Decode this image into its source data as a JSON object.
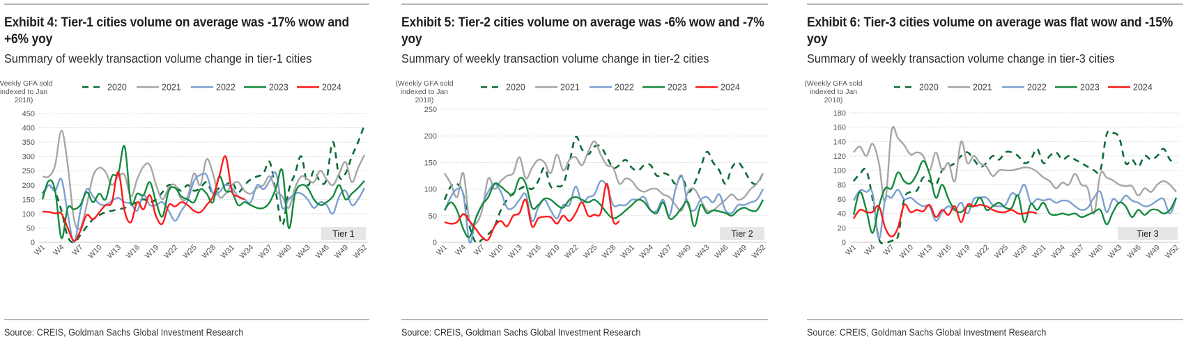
{
  "exhibits": [
    {
      "title": "Exhibit 4: Tier-1 cities volume on average was -17% wow and +6% yoy",
      "subtitle": "Summary of weekly transaction volume change in tier-1 cities",
      "source": "Source: CREIS, Goldman Sachs Global Investment Research"
    },
    {
      "title": "Exhibit 5: Tier-2 cities volume on average was -6% wow and -7% yoy",
      "subtitle": "Summary of weekly transaction volume change in tier-2 cities",
      "source": "Source: CREIS, Goldman Sachs Global Investment Research"
    },
    {
      "title": "Exhibit 6: Tier-3 cities volume on average was flat wow and -15% yoy",
      "subtitle": "Summary of weekly transaction volume change in tier-3 cities",
      "source": "Source: CREIS, Goldman Sachs Global Investment Research"
    }
  ],
  "colors": {
    "2020": "#0b6b35",
    "2021": "#a6a6a6",
    "2022": "#7aa0d0",
    "2023": "#138a3e",
    "2024": "#ff1a1a"
  },
  "chart_data": [
    {
      "type": "line",
      "title": "Exhibit 4: Tier-1 cities volume on average was -17% wow and +6% yoy",
      "ylabel": "(Weekly GFA sold indexed to Jan 2018)",
      "xlabel": "",
      "ylim": [
        0,
        450
      ],
      "yticks": [
        0,
        50,
        100,
        150,
        200,
        250,
        300,
        350,
        400,
        450
      ],
      "xticks": [
        "W1",
        "W4",
        "W7",
        "W10",
        "W13",
        "W16",
        "W19",
        "W22",
        "W25",
        "W28",
        "W31",
        "W34",
        "W37",
        "W40",
        "W43",
        "W46",
        "W49",
        "W52"
      ],
      "grid": true,
      "legend": "top",
      "annotation": "Tier 1",
      "series": [
        {
          "name": "2020",
          "style": "dashed",
          "values": [
            170,
            195,
            175,
            110,
            20,
            0,
            25,
            55,
            80,
            95,
            105,
            110,
            115,
            120,
            130,
            140,
            150,
            140,
            150,
            175,
            200,
            195,
            180,
            200,
            180,
            190,
            210,
            170,
            190,
            200,
            210,
            175,
            200,
            220,
            230,
            240,
            280,
            170,
            60,
            180,
            240,
            300,
            200,
            250,
            210,
            220,
            350,
            230,
            240,
            300,
            350,
            410
          ]
        },
        {
          "name": "2021",
          "style": "solid",
          "values": [
            230,
            230,
            270,
            390,
            270,
            80,
            50,
            130,
            230,
            260,
            245,
            200,
            230,
            235,
            160,
            220,
            265,
            270,
            200,
            150,
            190,
            200,
            150,
            160,
            240,
            200,
            290,
            240,
            160,
            170,
            200,
            210,
            180,
            170,
            190,
            200,
            230,
            180,
            160,
            120,
            190,
            230,
            220,
            210,
            250,
            220,
            200,
            240,
            280,
            210,
            260,
            305
          ]
        },
        {
          "name": "2022",
          "style": "solid",
          "values": [
            160,
            200,
            180,
            220,
            100,
            0,
            110,
            185,
            160,
            135,
            130,
            145,
            155,
            140,
            135,
            110,
            165,
            130,
            130,
            140,
            110,
            75,
            110,
            145,
            215,
            235,
            235,
            170,
            175,
            200,
            190,
            160,
            150,
            140,
            200,
            185,
            215,
            240,
            120,
            150,
            170,
            170,
            150,
            120,
            140,
            130,
            100,
            160,
            180,
            130,
            150,
            190
          ]
        },
        {
          "name": "2023",
          "style": "solid",
          "values": [
            150,
            215,
            180,
            15,
            120,
            115,
            130,
            175,
            140,
            170,
            150,
            230,
            240,
            335,
            140,
            170,
            165,
            210,
            140,
            90,
            180,
            190,
            160,
            150,
            140,
            185,
            170,
            140,
            230,
            180,
            175,
            130,
            140,
            130,
            120,
            120,
            140,
            190,
            250,
            50,
            170,
            200,
            190,
            150,
            130,
            140,
            160,
            200,
            150,
            170,
            190,
            215
          ]
        },
        {
          "name": "2024",
          "style": "solid",
          "values": [
            107,
            106,
            101,
            100,
            50,
            5,
            40,
            95,
            80,
            105,
            130,
            140,
            245,
            110,
            70,
            140,
            115,
            165,
            90,
            65,
            130,
            125,
            140,
            130,
            110,
            105,
            130,
            160,
            230,
            300,
            180,
            160,
            150
          ]
        }
      ]
    },
    {
      "type": "line",
      "title": "Exhibit 5: Tier-2 cities volume on average was -6% wow and -7% yoy",
      "ylabel": "(Weekly GFA sold indexed to Jan 2018)",
      "xlabel": "",
      "ylim": [
        0,
        250
      ],
      "yticks": [
        0,
        50,
        100,
        150,
        200,
        250
      ],
      "xticks": [
        "W1",
        "W4",
        "W7",
        "W10",
        "W13",
        "W16",
        "W19",
        "W22",
        "W25",
        "W28",
        "W31",
        "W34",
        "W37",
        "W40",
        "W43",
        "W46",
        "W49",
        "W52"
      ],
      "grid": true,
      "legend": "top",
      "annotation": "Tier 2",
      "series": [
        {
          "name": "2020",
          "style": "dashed",
          "values": [
            80,
            105,
            110,
            90,
            30,
            0,
            5,
            15,
            30,
            60,
            80,
            92,
            100,
            105,
            100,
            115,
            140,
            105,
            105,
            110,
            150,
            198,
            175,
            165,
            180,
            180,
            160,
            140,
            145,
            155,
            140,
            135,
            145,
            145,
            125,
            130,
            125,
            110,
            125,
            95,
            110,
            140,
            170,
            150,
            135,
            110,
            140,
            150,
            135,
            115,
            110,
            130
          ]
        },
        {
          "name": "2021",
          "style": "solid",
          "values": [
            130,
            110,
            85,
            130,
            40,
            35,
            60,
            120,
            100,
            115,
            125,
            130,
            160,
            120,
            140,
            155,
            150,
            130,
            165,
            135,
            155,
            160,
            145,
            170,
            190,
            165,
            145,
            140,
            110,
            120,
            115,
            100,
            95,
            100,
            100,
            90,
            85,
            70,
            60,
            95,
            100,
            80,
            60,
            60,
            70,
            80,
            90,
            80,
            85,
            100,
            110,
            130
          ]
        },
        {
          "name": "2022",
          "style": "solid",
          "values": [
            60,
            85,
            100,
            90,
            0,
            45,
            70,
            95,
            110,
            95,
            65,
            65,
            80,
            90,
            40,
            65,
            80,
            60,
            45,
            70,
            70,
            105,
            75,
            85,
            90,
            115,
            105,
            70,
            70,
            70,
            80,
            80,
            85,
            60,
            60,
            80,
            50,
            100,
            125,
            70,
            60,
            80,
            85,
            75,
            90,
            60,
            55,
            70,
            70,
            75,
            80,
            100
          ]
        },
        {
          "name": "2023",
          "style": "solid",
          "values": [
            60,
            75,
            60,
            25,
            10,
            45,
            70,
            85,
            110,
            105,
            95,
            90,
            120,
            110,
            65,
            70,
            82,
            80,
            70,
            65,
            80,
            85,
            80,
            75,
            80,
            70,
            55,
            45,
            50,
            60,
            70,
            80,
            75,
            60,
            55,
            75,
            45,
            50,
            65,
            75,
            30,
            70,
            55,
            60,
            58,
            55,
            50,
            60,
            65,
            60,
            60,
            80
          ]
        },
        {
          "name": "2024",
          "style": "solid",
          "values": [
            38,
            35,
            38,
            53,
            40,
            25,
            10,
            5,
            30,
            40,
            30,
            50,
            55,
            80,
            30,
            45,
            48,
            47,
            35,
            50,
            40,
            55,
            75,
            50,
            52,
            55,
            110,
            40,
            40
          ]
        }
      ]
    },
    {
      "type": "line",
      "title": "Exhibit 6: Tier-3 cities volume on average was flat wow and -15% yoy",
      "ylabel": "(Weekly GFA sold indexed to Jan 2018)",
      "xlabel": "",
      "ylim": [
        0,
        180
      ],
      "yticks": [
        0,
        20,
        40,
        60,
        80,
        100,
        120,
        140,
        160,
        180
      ],
      "xticks": [
        "W1",
        "W4",
        "W7",
        "W10",
        "W13",
        "W16",
        "W19",
        "W22",
        "W25",
        "W28",
        "W31",
        "W34",
        "W37",
        "W40",
        "W43",
        "W46",
        "W49",
        "W52"
      ],
      "grid": true,
      "legend": "top",
      "annotation": "Tier 3",
      "series": [
        {
          "name": "2020",
          "style": "dashed",
          "values": [
            85,
            95,
            100,
            60,
            5,
            0,
            2,
            8,
            60,
            70,
            72,
            90,
            85,
            80,
            100,
            105,
            110,
            120,
            125,
            115,
            105,
            110,
            120,
            115,
            125,
            125,
            120,
            110,
            115,
            130,
            110,
            120,
            125,
            115,
            120,
            115,
            110,
            105,
            100,
            100,
            150,
            152,
            145,
            110,
            115,
            105,
            120,
            115,
            120,
            130,
            115,
            110
          ]
        },
        {
          "name": "2021",
          "style": "solid",
          "values": [
            125,
            133,
            120,
            137,
            110,
            58,
            155,
            145,
            135,
            122,
            125,
            120,
            100,
            125,
            100,
            110,
            85,
            140,
            110,
            120,
            110,
            105,
            92,
            100,
            100,
            100,
            102,
            104,
            103,
            98,
            90,
            85,
            75,
            83,
            80,
            95,
            80,
            75,
            40,
            95,
            90,
            86,
            80,
            78,
            78,
            65,
            75,
            70,
            80,
            85,
            80,
            70
          ]
        },
        {
          "name": "2022",
          "style": "solid",
          "values": [
            58,
            72,
            70,
            68,
            5,
            60,
            62,
            73,
            60,
            62,
            55,
            50,
            50,
            30,
            42,
            50,
            45,
            55,
            40,
            60,
            62,
            62,
            52,
            50,
            52,
            68,
            65,
            80,
            55,
            60,
            58,
            60,
            55,
            58,
            57,
            50,
            45,
            48,
            62,
            70,
            42,
            60,
            55,
            65,
            58,
            55,
            50,
            52,
            58,
            60,
            40,
            62
          ]
        },
        {
          "name": "2023",
          "style": "solid",
          "values": [
            38,
            70,
            45,
            13,
            50,
            75,
            75,
            97,
            85,
            82,
            95,
            113,
            95,
            62,
            80,
            60,
            45,
            42,
            50,
            50,
            62,
            45,
            50,
            55,
            48,
            48,
            65,
            28,
            53,
            45,
            55,
            40,
            38,
            40,
            38,
            40,
            35,
            38,
            42,
            45,
            25,
            42,
            55,
            50,
            35,
            45,
            38,
            45,
            45,
            40,
            45,
            62
          ]
        },
        {
          "name": "2024",
          "style": "solid",
          "values": [
            33,
            45,
            42,
            42,
            50,
            20,
            8,
            20,
            52,
            42,
            45,
            43,
            52,
            35,
            45,
            38,
            50,
            28,
            52,
            50,
            52,
            50,
            45,
            42,
            42,
            45,
            40,
            40,
            42,
            40
          ]
        }
      ]
    }
  ]
}
